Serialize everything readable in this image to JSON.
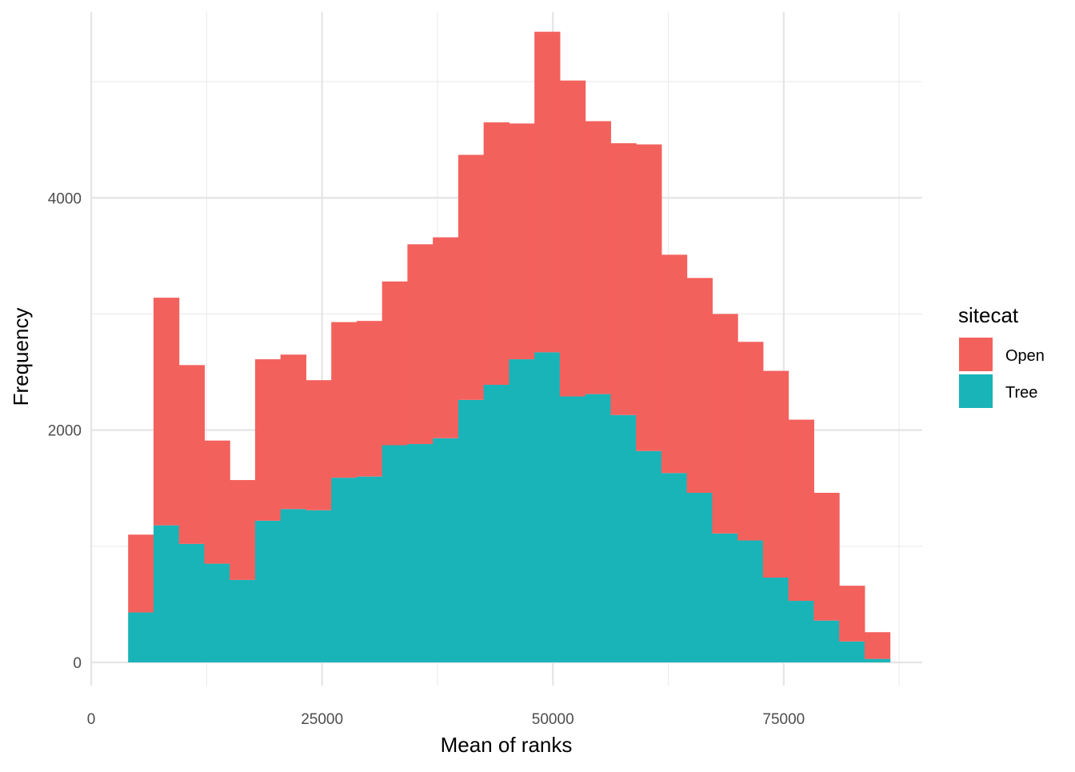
{
  "chart_data": {
    "type": "bar",
    "subtype": "stacked-histogram",
    "title": "",
    "xlabel": "Mean of ranks",
    "ylabel": "Frequency",
    "xlim": [
      0,
      90000
    ],
    "ylim": [
      -200,
      5600
    ],
    "x_ticks": [
      0,
      25000,
      50000,
      75000
    ],
    "x_tick_labels": [
      "0",
      "25000",
      "50000",
      "75000"
    ],
    "y_ticks": [
      0,
      2000,
      4000
    ],
    "y_tick_labels": [
      "0",
      "2000",
      "4000"
    ],
    "grid": true,
    "legend": {
      "title": "sitecat",
      "position": "right"
    },
    "bin_width": 2750,
    "bin_starts": [
      4000,
      6750,
      9500,
      12250,
      15000,
      17750,
      20500,
      23250,
      26000,
      28750,
      31500,
      34250,
      37000,
      39750,
      42500,
      45250,
      48000,
      50750,
      53500,
      56250,
      59000,
      61750,
      64500,
      67250,
      70000,
      72750,
      75500,
      78250,
      81000,
      83750
    ],
    "series": [
      {
        "name": "Tree",
        "color": "#19B4B8",
        "values": [
          430,
          1180,
          1020,
          850,
          710,
          1220,
          1320,
          1310,
          1590,
          1600,
          1870,
          1880,
          1930,
          2260,
          2390,
          2610,
          2670,
          2290,
          2310,
          2130,
          1820,
          1630,
          1460,
          1110,
          1050,
          730,
          530,
          360,
          180,
          30
        ]
      },
      {
        "name": "Open",
        "color": "#F3615D",
        "values": [
          670,
          1960,
          1540,
          1060,
          860,
          1390,
          1330,
          1120,
          1340,
          1340,
          1410,
          1720,
          1730,
          2110,
          2260,
          2030,
          2760,
          2720,
          2350,
          2340,
          2640,
          1880,
          1850,
          1890,
          1710,
          1780,
          1560,
          1100,
          480,
          230
        ]
      }
    ]
  }
}
